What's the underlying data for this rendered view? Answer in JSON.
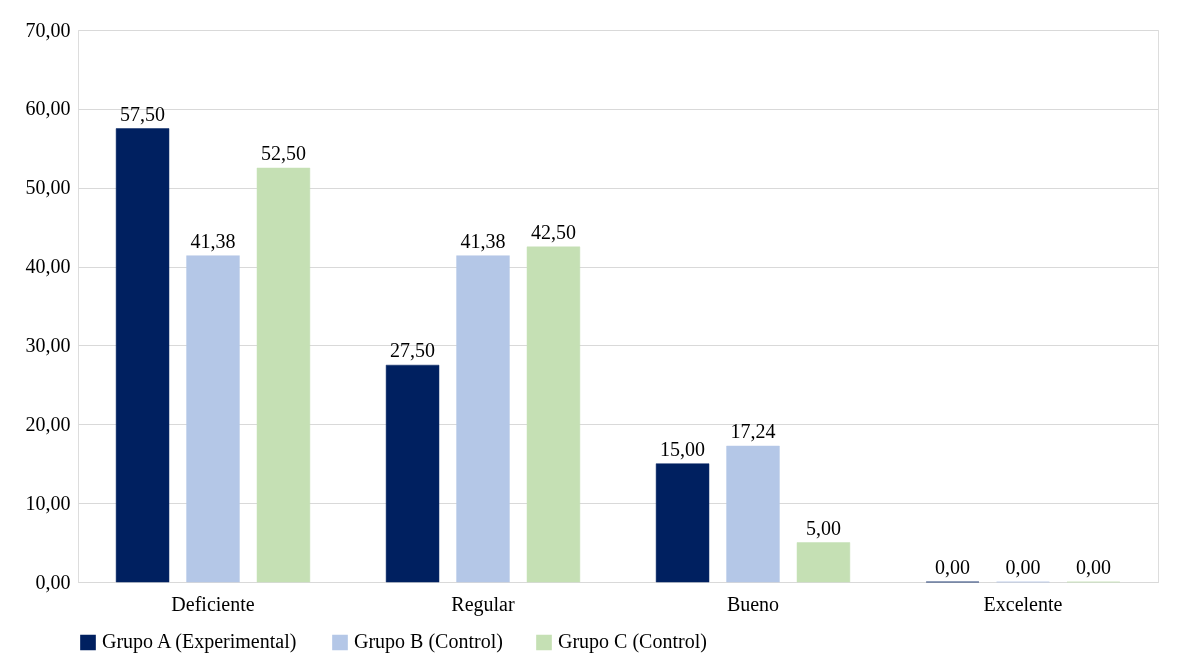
{
  "chart_data": {
    "type": "bar",
    "categories": [
      "Deficiente",
      "Regular",
      "Bueno",
      "Excelente"
    ],
    "series": [
      {
        "name": "Grupo A (Experimental)",
        "color": "#002060",
        "values": [
          57.5,
          27.5,
          15.0,
          0.0
        ],
        "value_labels": [
          "57,50",
          "27,50",
          "15,00",
          "0,00"
        ]
      },
      {
        "name": "Grupo B (Control)",
        "color": "#b4c7e7",
        "values": [
          41.38,
          41.38,
          17.24,
          0.0
        ],
        "value_labels": [
          "41,38",
          "41,38",
          "17,24",
          "0,00"
        ]
      },
      {
        "name": "Grupo C (Control)",
        "color": "#c5e0b4",
        "values": [
          52.5,
          42.5,
          5.0,
          0.0
        ],
        "value_labels": [
          "52,50",
          "42,50",
          "5,00",
          "0,00"
        ]
      }
    ],
    "ylim": [
      0,
      70
    ],
    "yticks": [
      {
        "value": 0,
        "label": "0,00"
      },
      {
        "value": 10,
        "label": "10,00"
      },
      {
        "value": 20,
        "label": "20,00"
      },
      {
        "value": 30,
        "label": "30,00"
      },
      {
        "value": 40,
        "label": "40,00"
      },
      {
        "value": 50,
        "label": "50,00"
      },
      {
        "value": 60,
        "label": "60,00"
      },
      {
        "value": 70,
        "label": "70,00"
      }
    ],
    "grid": "y",
    "legend": "bottom"
  }
}
